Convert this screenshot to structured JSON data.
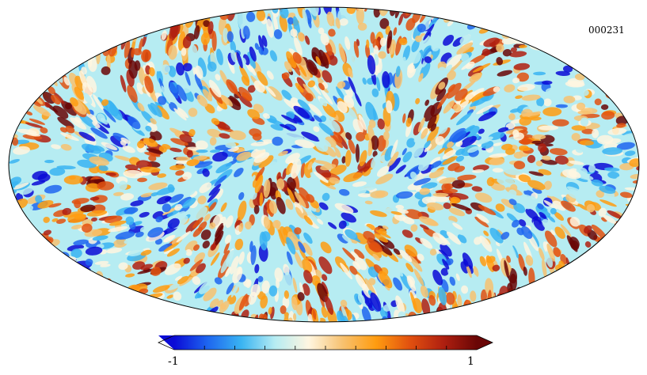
{
  "map": {
    "identifier": "000231",
    "projection": "mollweide",
    "colormap": [
      "#0b0bd6",
      "#1e66f0",
      "#3ab4f2",
      "#b6ecf2",
      "#fff6e0",
      "#f7c271",
      "#ff9c10",
      "#e2510f",
      "#b02010",
      "#6a0606"
    ]
  },
  "colorbar": {
    "min_label": "-1",
    "max_label": "1",
    "range": [
      -1,
      1
    ],
    "ticks": 10
  }
}
